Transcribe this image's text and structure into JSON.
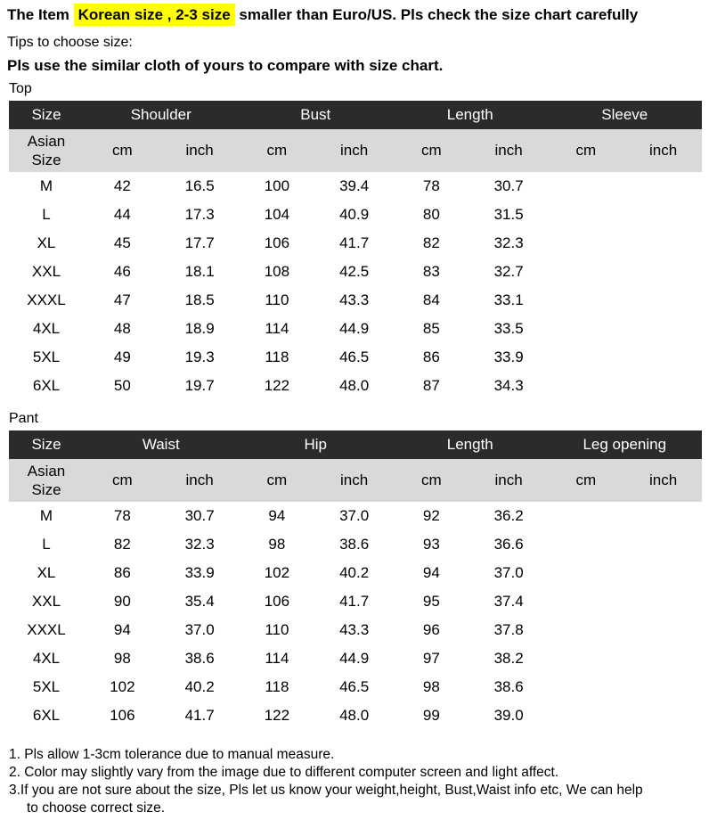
{
  "page": {
    "title": {
      "prefix": "The Item ",
      "highlight": "Korean size , 2-3 size",
      "suffix": " smaller than Euro/US. Pls check the size chart carefully"
    },
    "tips_intro": "Tips to choose size:",
    "tips_bold": "Pls use the similar cloth of yours to compare with size chart."
  },
  "colors": {
    "highlight_bg": "#ffff00",
    "table_header_bg": "#2b2b2b",
    "table_header_text": "#ffffff",
    "table_subheader_bg": "#d9d9d9",
    "text": "#000000"
  },
  "tables": [
    {
      "section_label": "Top",
      "corner_header": "Size",
      "corner_subheader_lines": [
        "Asian",
        "Size"
      ],
      "groups": [
        "Shoulder",
        "Bust",
        "Length",
        "Sleeve"
      ],
      "units": [
        "cm",
        "inch"
      ],
      "rows": [
        {
          "size": "M",
          "values": [
            "42",
            "16.5",
            "100",
            "39.4",
            "78",
            "30.7",
            "",
            ""
          ]
        },
        {
          "size": "L",
          "values": [
            "44",
            "17.3",
            "104",
            "40.9",
            "80",
            "31.5",
            "",
            ""
          ]
        },
        {
          "size": "XL",
          "values": [
            "45",
            "17.7",
            "106",
            "41.7",
            "82",
            "32.3",
            "",
            ""
          ]
        },
        {
          "size": "XXL",
          "values": [
            "46",
            "18.1",
            "108",
            "42.5",
            "83",
            "32.7",
            "",
            ""
          ]
        },
        {
          "size": "XXXL",
          "values": [
            "47",
            "18.5",
            "110",
            "43.3",
            "84",
            "33.1",
            "",
            ""
          ]
        },
        {
          "size": "4XL",
          "values": [
            "48",
            "18.9",
            "114",
            "44.9",
            "85",
            "33.5",
            "",
            ""
          ]
        },
        {
          "size": "5XL",
          "values": [
            "49",
            "19.3",
            "118",
            "46.5",
            "86",
            "33.9",
            "",
            ""
          ]
        },
        {
          "size": "6XL",
          "values": [
            "50",
            "19.7",
            "122",
            "48.0",
            "87",
            "34.3",
            "",
            ""
          ]
        }
      ]
    },
    {
      "section_label": "Pant",
      "corner_header": "Size",
      "corner_subheader_lines": [
        "Asian",
        "Size"
      ],
      "groups": [
        "Waist",
        "Hip",
        "Length",
        "Leg opening"
      ],
      "units": [
        "cm",
        "inch"
      ],
      "rows": [
        {
          "size": "M",
          "values": [
            "78",
            "30.7",
            "94",
            "37.0",
            "92",
            "36.2",
            "",
            ""
          ]
        },
        {
          "size": "L",
          "values": [
            "82",
            "32.3",
            "98",
            "38.6",
            "93",
            "36.6",
            "",
            ""
          ]
        },
        {
          "size": "XL",
          "values": [
            "86",
            "33.9",
            "102",
            "40.2",
            "94",
            "37.0",
            "",
            ""
          ]
        },
        {
          "size": "XXL",
          "values": [
            "90",
            "35.4",
            "106",
            "41.7",
            "95",
            "37.4",
            "",
            ""
          ]
        },
        {
          "size": "XXXL",
          "values": [
            "94",
            "37.0",
            "110",
            "43.3",
            "96",
            "37.8",
            "",
            ""
          ]
        },
        {
          "size": "4XL",
          "values": [
            "98",
            "38.6",
            "114",
            "44.9",
            "97",
            "38.2",
            "",
            ""
          ]
        },
        {
          "size": "5XL",
          "values": [
            "102",
            "40.2",
            "118",
            "46.5",
            "98",
            "38.6",
            "",
            ""
          ]
        },
        {
          "size": "6XL",
          "values": [
            "106",
            "41.7",
            "122",
            "48.0",
            "99",
            "39.0",
            "",
            ""
          ]
        }
      ]
    }
  ],
  "notes": [
    {
      "text": "1. Pls allow 1-3cm tolerance due to manual measure.",
      "indent": false
    },
    {
      "text": "2. Color may slightly vary from the image due to different computer screen and light affect.",
      "indent": false
    },
    {
      "text": "3.If you are not sure about the size, Pls let us know your weight,height, Bust,Waist info etc, We can help",
      "indent": false
    },
    {
      "text": "to choose correct size.",
      "indent": true
    }
  ]
}
